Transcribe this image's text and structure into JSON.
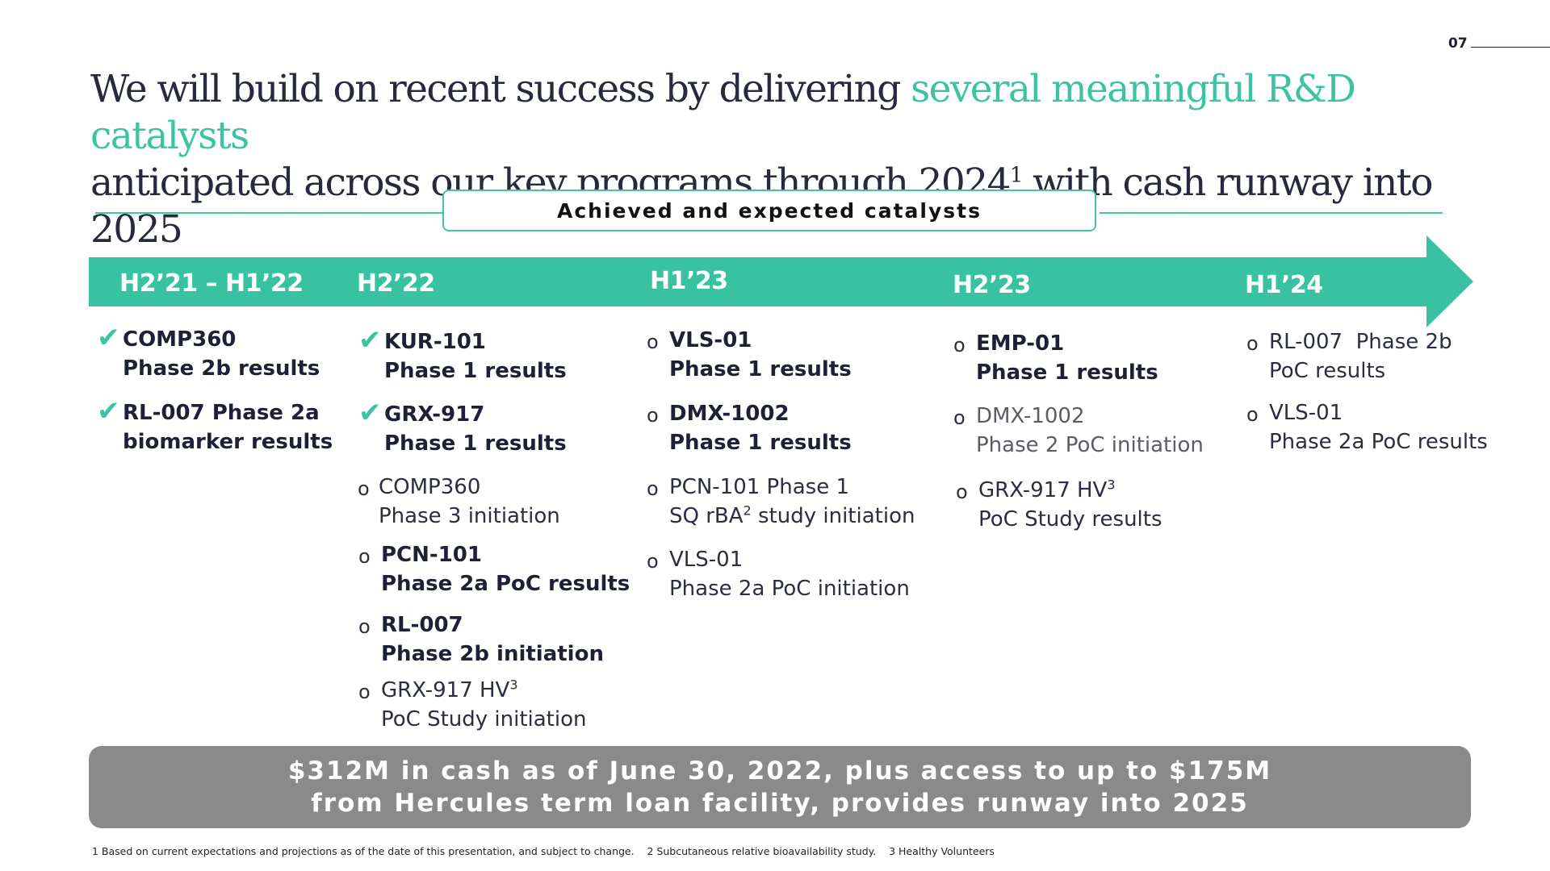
{
  "page_number": "07",
  "headline": {
    "part1": "We will build on recent success by delivering ",
    "accent": "several meaningful R&D catalysts",
    "part2": "anticipated across our key programs through 2024",
    "sup": "1",
    "part3": " with cash runway into 2025"
  },
  "catalysts_label": "Achieved and expected catalysts",
  "colors": {
    "accent": "#3cc3a4",
    "cash_box": "#8a8a8a"
  },
  "periods": [
    "H2’21 – H1’22",
    "H2’22",
    "H1’23",
    "H2’23",
    "H1’24"
  ],
  "col1": [
    {
      "marker": "check-icon",
      "line1": "COMP360",
      "line2": "Phase 2b results"
    },
    {
      "marker": "check-icon",
      "line1": "RL-007 Phase 2a",
      "line2": "biomarker results"
    }
  ],
  "col2": [
    {
      "marker": "check-icon",
      "line1": "KUR-101",
      "line2": "Phase 1 results"
    },
    {
      "marker": "check-icon",
      "line1": "GRX-917",
      "line2": "Phase 1 results"
    },
    {
      "marker": "bullet-icon",
      "line1": "COMP360",
      "line2": "Phase 3 initiation"
    },
    {
      "marker": "bullet-icon",
      "line1": "PCN-101",
      "line2": "Phase 2a PoC results"
    },
    {
      "marker": "bullet-icon",
      "line1": "RL-007",
      "line2": "Phase 2b initiation"
    },
    {
      "marker": "bullet-icon",
      "line1": "GRX-917 HV",
      "sup": "3",
      "line2": "PoC Study initiation"
    }
  ],
  "col3": [
    {
      "marker": "bullet-icon",
      "line1": "VLS-01",
      "line2": "Phase 1 results"
    },
    {
      "marker": "bullet-icon",
      "line1": "DMX-1002",
      "line2": "Phase 1 results"
    },
    {
      "marker": "bullet-icon",
      "line1": "PCN-101 Phase 1",
      "line2a": "SQ rBA",
      "sup": "2",
      "line2b": " study initiation"
    },
    {
      "marker": "bullet-icon",
      "line1": "VLS-01",
      "line2": "Phase 2a PoC initiation"
    }
  ],
  "col4": [
    {
      "marker": "bullet-icon",
      "line1": "EMP-01",
      "line2": "Phase 1 results"
    },
    {
      "marker": "bullet-icon",
      "line1": "DMX-1002",
      "line2": "Phase 2 PoC initiation"
    },
    {
      "marker": "bullet-icon",
      "line1": "GRX-917 HV",
      "sup": "3",
      "line2": "PoC Study results"
    }
  ],
  "col5": [
    {
      "marker": "bullet-icon",
      "line1": "RL-007  Phase 2b",
      "line2": "PoC results"
    },
    {
      "marker": "bullet-icon",
      "line1": "VLS-01",
      "line2": "Phase 2a PoC results"
    }
  ],
  "bullet_char": "o",
  "check_char": "✔",
  "cash": {
    "line1": "$312M in cash as of June 30, 2022, plus access to up to $175M",
    "line2": "from Hercules term loan facility, provides runway into 2025"
  },
  "footnotes": "1 Based on current expectations and projections as of the date of this presentation, and subject to change.    2 Subcutaneous relative bioavailability study.    3 Healthy Volunteers"
}
